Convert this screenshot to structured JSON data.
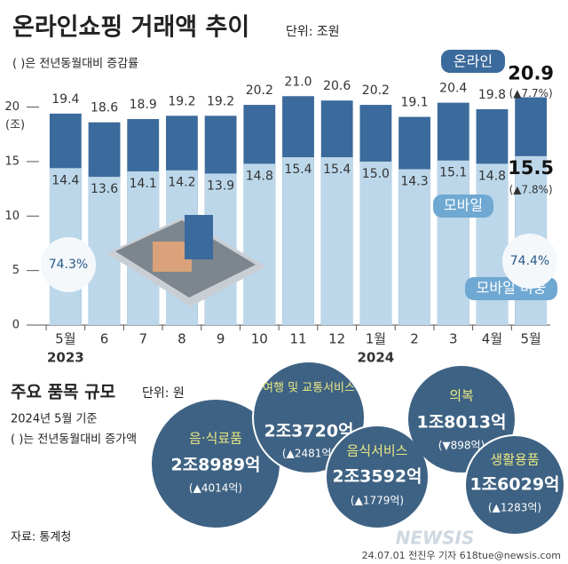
{
  "chart_data": {
    "type": "bar",
    "overlap": true,
    "title": "온라인쇼핑 거래액 추이",
    "unit": "단위: 조원",
    "subtitle": "( )은 전년동월대비 증감률",
    "y_label": "(조)",
    "categories": [
      "5월",
      "6",
      "7",
      "8",
      "9",
      "10",
      "11",
      "12",
      "1월",
      "2",
      "3",
      "4월",
      "5월"
    ],
    "year_labels": [
      "2023",
      null,
      null,
      null,
      null,
      null,
      null,
      null,
      "2024",
      null,
      null,
      null,
      null
    ],
    "series": [
      {
        "name": "온라인",
        "color": "#3b6a9c",
        "values": [
          19.4,
          18.6,
          18.9,
          19.2,
          19.2,
          20.2,
          21,
          20.6,
          20.2,
          19.1,
          20.4,
          19.8,
          20.9
        ],
        "value_labels": [
          "19.4",
          "18.6",
          "18.9",
          "19.2",
          "19.2",
          "20.2",
          "21.0",
          "20.6",
          "20.2",
          "19.1",
          "20.4",
          "19.8",
          "20.9"
        ]
      },
      {
        "name": "모바일",
        "color": "#bcd7ea",
        "values": [
          14.4,
          13.6,
          14.1,
          14.2,
          13.9,
          14.8,
          15.4,
          15.4,
          15,
          14.3,
          15.1,
          14.8,
          15.5
        ],
        "value_labels": [
          "14.4",
          "13.6",
          "14.1",
          "14.2",
          "13.9",
          "14.8",
          "15.4",
          "15.4",
          "15.0",
          "14.3",
          "15.1",
          "14.8",
          "15.5"
        ]
      }
    ],
    "share_name": "모바일 비중",
    "share_labels": [
      "74.3%",
      "74.4%"
    ],
    "change_labels": [
      "(▲7.7%)",
      "(▲7.8%)"
    ],
    "ylim": [
      0,
      22
    ],
    "yticks": [
      0,
      5,
      10,
      15,
      20
    ]
  },
  "items": {
    "title": "주요 품목 규모",
    "unit": "단위: 원",
    "basis": "2024년 5월 기준",
    "note": "( )는 전년동월대비 증가액",
    "bubbles": [
      {
        "name": "음·식료품",
        "amount": "2조8989억",
        "change": "(▲4014억)"
      },
      {
        "name": "여행 및 교통서비스",
        "amount": "2조3720억",
        "change": "(▲2481억)"
      },
      {
        "name": "음식서비스",
        "amount": "2조3592억",
        "change": "(▲1779억)"
      },
      {
        "name": "의복",
        "amount": "1조8013억",
        "change": "(▼898억)"
      },
      {
        "name": "생활용품",
        "amount": "1조6029억",
        "change": "(▲1283억)"
      }
    ]
  },
  "footer": {
    "source": "자료: 통계청",
    "credit": "24.07.01 전진우 기자 618tue@newsis.com",
    "logo": "NEWSIS"
  }
}
